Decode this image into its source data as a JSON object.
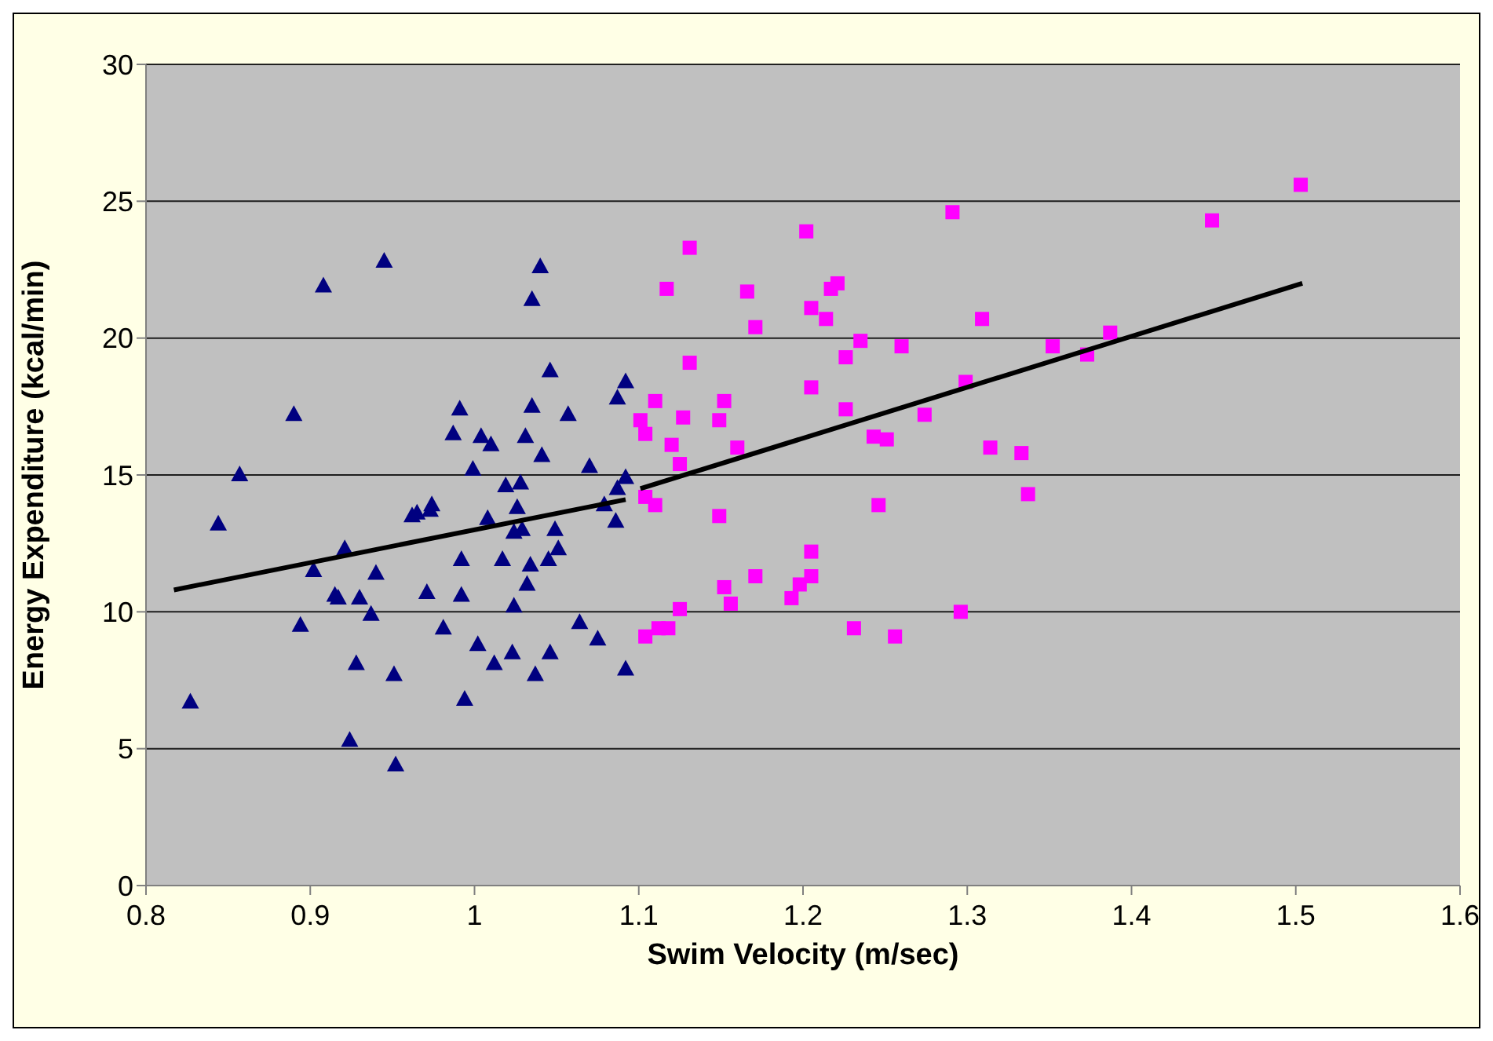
{
  "chart_data": {
    "type": "scatter",
    "xlabel": "Swim Velocity (m/sec)",
    "ylabel": "Energy Expenditure (kcal/min)",
    "xlim": [
      0.8,
      1.6
    ],
    "xticks": [
      0.8,
      0.9,
      1,
      1.1,
      1.2,
      1.3,
      1.4,
      1.5,
      1.6
    ],
    "ylim": [
      0,
      30
    ],
    "yticks": [
      0,
      5,
      10,
      15,
      20,
      25,
      30
    ],
    "grid": "y",
    "series": [
      {
        "type": "scatter",
        "marker": "triangle",
        "color": "#000080",
        "x": [
          0.827,
          0.844,
          0.857,
          0.89,
          0.894,
          0.902,
          0.908,
          0.915,
          0.917,
          0.921,
          0.924,
          0.928,
          0.93,
          0.937,
          0.94,
          0.945,
          0.951,
          0.952,
          0.962,
          0.965,
          0.971,
          0.973,
          0.974,
          0.981,
          0.987,
          0.991,
          0.992,
          0.992,
          0.994,
          0.999,
          1.002,
          1.004,
          1.008,
          1.01,
          1.012,
          1.017,
          1.019,
          1.023,
          1.024,
          1.024,
          1.026,
          1.028,
          1.029,
          1.031,
          1.032,
          1.034,
          1.035,
          1.035,
          1.037,
          1.04,
          1.041,
          1.045,
          1.046,
          1.046,
          1.049,
          1.051,
          1.057,
          1.064,
          1.07,
          1.075,
          1.079,
          1.086,
          1.087,
          1.087,
          1.092,
          1.092,
          1.092
        ],
        "values": [
          6.7,
          13.2,
          15.0,
          17.2,
          9.5,
          11.5,
          21.9,
          10.6,
          10.5,
          12.3,
          5.3,
          8.1,
          10.5,
          9.9,
          11.4,
          22.8,
          7.7,
          4.4,
          13.5,
          13.6,
          10.7,
          13.7,
          13.9,
          9.4,
          16.5,
          17.4,
          11.9,
          10.6,
          6.8,
          15.2,
          8.8,
          16.4,
          13.4,
          16.1,
          8.1,
          11.9,
          14.6,
          8.5,
          10.2,
          12.9,
          13.8,
          14.7,
          13.0,
          16.4,
          11.0,
          11.7,
          17.5,
          21.4,
          7.7,
          22.6,
          15.7,
          11.9,
          8.5,
          18.8,
          13.0,
          12.3,
          17.2,
          9.6,
          15.3,
          9.0,
          13.9,
          13.3,
          17.8,
          14.5,
          18.4,
          7.9,
          14.9
        ]
      },
      {
        "type": "scatter",
        "marker": "square",
        "color": "#ff00ff",
        "x": [
          1.291,
          1.202,
          1.131,
          1.117,
          1.166,
          1.221,
          1.217,
          1.205,
          1.214,
          1.309,
          1.171,
          1.235,
          1.26,
          1.226,
          1.131,
          1.299,
          1.205,
          1.11,
          1.152,
          1.101,
          1.127,
          1.149,
          1.226,
          1.274,
          1.104,
          1.12,
          1.16,
          1.243,
          1.251,
          1.125,
          1.314,
          1.333,
          1.337,
          1.104,
          1.11,
          1.149,
          1.246,
          1.205,
          1.171,
          1.205,
          1.152,
          1.198,
          1.193,
          1.156,
          1.125,
          1.296,
          1.104,
          1.112,
          1.118,
          1.231,
          1.256,
          1.503,
          1.449,
          1.352,
          1.387,
          1.373
        ],
        "values": [
          24.6,
          23.9,
          23.3,
          21.8,
          21.7,
          22.0,
          21.8,
          21.1,
          20.7,
          20.7,
          20.4,
          19.9,
          19.7,
          19.3,
          19.1,
          18.4,
          18.2,
          17.7,
          17.7,
          17.0,
          17.1,
          17.0,
          17.4,
          17.2,
          16.5,
          16.1,
          16.0,
          16.4,
          16.3,
          15.4,
          16.0,
          15.8,
          14.3,
          14.2,
          13.9,
          13.5,
          13.9,
          12.2,
          11.3,
          11.3,
          10.9,
          11.0,
          10.5,
          10.3,
          10.1,
          10.0,
          9.1,
          9.4,
          9.4,
          9.4,
          9.1,
          25.6,
          24.3,
          19.7,
          20.2,
          19.4
        ]
      },
      {
        "type": "line",
        "color": "#000000",
        "x": [
          0.817,
          1.092
        ],
        "values": [
          10.8,
          14.1
        ]
      },
      {
        "type": "line",
        "color": "#000000",
        "x": [
          1.101,
          1.504
        ],
        "values": [
          14.5,
          22.0
        ]
      }
    ]
  }
}
